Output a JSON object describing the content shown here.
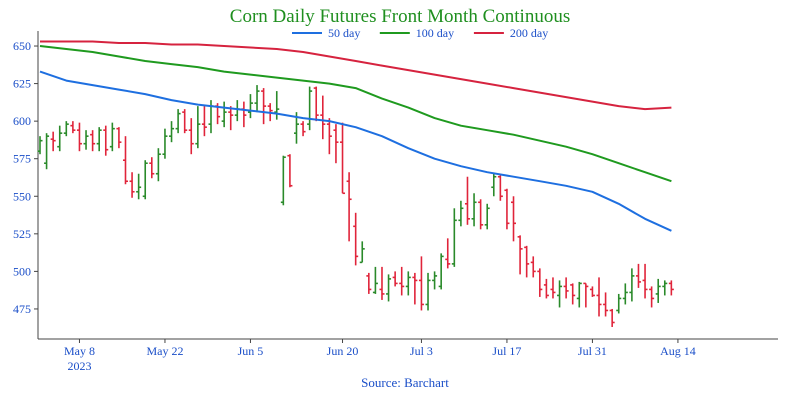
{
  "colors": {
    "title": "#1f8f1f",
    "axis_text": "#1a4ec8",
    "up": "#2a8a2a",
    "down": "#e0243a",
    "ma50": "#1e6fe0",
    "ma100": "#1f9a1f",
    "ma200": "#d6233f"
  },
  "chart_data": {
    "type": "ohlc",
    "title": "Corn Daily Futures Front Month Continuous",
    "source": "Source: Barchart",
    "ylim": [
      455,
      660
    ],
    "yticks": [
      475,
      500,
      525,
      550,
      575,
      600,
      625,
      650
    ],
    "xlim": [
      0,
      111
    ],
    "xticks": [
      {
        "x": 6,
        "label": "May 8",
        "sublabel": "2023"
      },
      {
        "x": 19,
        "label": "May 22",
        "sublabel": ""
      },
      {
        "x": 32,
        "label": "Jun 5",
        "sublabel": ""
      },
      {
        "x": 46,
        "label": "Jun 20",
        "sublabel": ""
      },
      {
        "x": 58,
        "label": "Jul 3",
        "sublabel": ""
      },
      {
        "x": 71,
        "label": "Jul 17",
        "sublabel": ""
      },
      {
        "x": 84,
        "label": "Jul 31",
        "sublabel": ""
      },
      {
        "x": 97,
        "label": "Aug 14",
        "sublabel": ""
      }
    ],
    "legend": {
      "placement": "top-center",
      "entries": [
        {
          "name": "50 day",
          "series": "ma50"
        },
        {
          "name": "100 day",
          "series": "ma100"
        },
        {
          "name": "200 day",
          "series": "ma200"
        }
      ]
    },
    "bars": [
      [
        0,
        580,
        590,
        578,
        587
      ],
      [
        1,
        572,
        592,
        568,
        590
      ],
      [
        2,
        588,
        593,
        580,
        587
      ],
      [
        3,
        583,
        597,
        580,
        592
      ],
      [
        4,
        592,
        600,
        590,
        598
      ],
      [
        5,
        597,
        600,
        592,
        594
      ],
      [
        6,
        594,
        599,
        580,
        585
      ],
      [
        7,
        585,
        594,
        581,
        590
      ],
      [
        8,
        591,
        594,
        580,
        585
      ],
      [
        9,
        585,
        596,
        580,
        594
      ],
      [
        10,
        594,
        597,
        577,
        581
      ],
      [
        11,
        583,
        599,
        580,
        595
      ],
      [
        12,
        595,
        596,
        582,
        586
      ],
      [
        13,
        574,
        590,
        558,
        560
      ],
      [
        14,
        560,
        566,
        549,
        553
      ],
      [
        15,
        553,
        565,
        548,
        556
      ],
      [
        16,
        550,
        574,
        548,
        572
      ],
      [
        17,
        572,
        576,
        562,
        565
      ],
      [
        18,
        565,
        582,
        560,
        578
      ],
      [
        19,
        578,
        595,
        575,
        590
      ],
      [
        20,
        590,
        600,
        586,
        595
      ],
      [
        21,
        595,
        608,
        592,
        605
      ],
      [
        22,
        606,
        608,
        592,
        594
      ],
      [
        23,
        594,
        602,
        578,
        585
      ],
      [
        24,
        585,
        610,
        582,
        598
      ],
      [
        25,
        598,
        610,
        590,
        596
      ],
      [
        26,
        598,
        614,
        592,
        610
      ],
      [
        27,
        610,
        612,
        598,
        603
      ],
      [
        28,
        600,
        613,
        596,
        606
      ],
      [
        29,
        606,
        610,
        594,
        604
      ],
      [
        30,
        604,
        614,
        600,
        608
      ],
      [
        31,
        608,
        613,
        596,
        604
      ],
      [
        32,
        606,
        618,
        602,
        612
      ],
      [
        33,
        612,
        624,
        606,
        620
      ],
      [
        34,
        620,
        622,
        598,
        610
      ],
      [
        35,
        610,
        612,
        600,
        607
      ],
      [
        36,
        606,
        620,
        601,
        608
      ],
      [
        37,
        546,
        577,
        544,
        576
      ],
      [
        38,
        577,
        578,
        556,
        557
      ],
      [
        39,
        592,
        606,
        585,
        598
      ],
      [
        40,
        598,
        600,
        590,
        593
      ],
      [
        41,
        598,
        623,
        594,
        620
      ],
      [
        42,
        622,
        623,
        600,
        604
      ],
      [
        43,
        604,
        617,
        588,
        598
      ],
      [
        44,
        598,
        602,
        578,
        590
      ],
      [
        45,
        594,
        598,
        572,
        586
      ],
      [
        46,
        586,
        599,
        552,
        552
      ],
      [
        47,
        560,
        566,
        520,
        548
      ],
      [
        48,
        530,
        539,
        504,
        510
      ],
      [
        49,
        506,
        520,
        506,
        515
      ],
      [
        50,
        497,
        499,
        485,
        488
      ],
      [
        51,
        486,
        503,
        485,
        492
      ],
      [
        52,
        488,
        503,
        481,
        485
      ],
      [
        53,
        485,
        498,
        480,
        495
      ],
      [
        54,
        496,
        500,
        490,
        492
      ],
      [
        55,
        492,
        503,
        484,
        490
      ],
      [
        56,
        490,
        500,
        484,
        496
      ],
      [
        57,
        496,
        499,
        478,
        494
      ],
      [
        58,
        494,
        510,
        474,
        478
      ],
      [
        59,
        478,
        499,
        474,
        494
      ],
      [
        60,
        494,
        500,
        488,
        497
      ],
      [
        61,
        490,
        512,
        488,
        510
      ],
      [
        62,
        508,
        522,
        502,
        505
      ],
      [
        63,
        505,
        542,
        503,
        534
      ],
      [
        64,
        534,
        547,
        530,
        542
      ],
      [
        65,
        545,
        563,
        531,
        535
      ],
      [
        66,
        535,
        552,
        530,
        546
      ],
      [
        67,
        546,
        548,
        528,
        531
      ],
      [
        68,
        531,
        545,
        528,
        542
      ],
      [
        69,
        556,
        565,
        550,
        563
      ],
      [
        70,
        563,
        564,
        547,
        550
      ],
      [
        71,
        554,
        555,
        528,
        532
      ],
      [
        72,
        546,
        550,
        520,
        532
      ],
      [
        73,
        523,
        524,
        498,
        515
      ],
      [
        74,
        516,
        517,
        496,
        505
      ],
      [
        75,
        506,
        510,
        496,
        500
      ],
      [
        76,
        500,
        502,
        483,
        488
      ],
      [
        77,
        491,
        495,
        482,
        484
      ],
      [
        78,
        488,
        496,
        482,
        486
      ],
      [
        79,
        484,
        494,
        476,
        490
      ],
      [
        80,
        490,
        496,
        482,
        487
      ],
      [
        81,
        491,
        492,
        478,
        484
      ],
      [
        82,
        482,
        493,
        476,
        492
      ],
      [
        83,
        492,
        492,
        476,
        490
      ],
      [
        84,
        488,
        490,
        483,
        484
      ],
      [
        85,
        484,
        496,
        470,
        478
      ],
      [
        86,
        478,
        486,
        470,
        474
      ],
      [
        87,
        474,
        475,
        463,
        466
      ],
      [
        88,
        474,
        485,
        472,
        482
      ],
      [
        89,
        482,
        492,
        478,
        486
      ],
      [
        90,
        486,
        502,
        480,
        497
      ],
      [
        91,
        497,
        505,
        489,
        493
      ],
      [
        92,
        494,
        505,
        482,
        488
      ],
      [
        93,
        488,
        490,
        476,
        482
      ],
      [
        94,
        485,
        495,
        479,
        490
      ],
      [
        95,
        490,
        494,
        484,
        492
      ],
      [
        96,
        492,
        494,
        484,
        488
      ]
    ],
    "series": [
      {
        "key": "ma50",
        "name": "50 day",
        "x": [
          0,
          4,
          8,
          12,
          16,
          20,
          24,
          28,
          32,
          36,
          40,
          44,
          48,
          52,
          56,
          60,
          64,
          68,
          72,
          76,
          80,
          84,
          88,
          92,
          96
        ],
        "y": [
          633,
          627,
          624,
          621,
          618,
          614,
          611,
          609,
          607,
          605,
          602,
          600,
          596,
          590,
          582,
          575,
          570,
          566,
          563,
          560,
          557,
          553,
          545,
          535,
          527
        ]
      },
      {
        "key": "ma100",
        "name": "100 day",
        "x": [
          0,
          4,
          8,
          12,
          16,
          20,
          24,
          28,
          32,
          36,
          40,
          44,
          48,
          52,
          56,
          60,
          64,
          68,
          72,
          76,
          80,
          84,
          88,
          92,
          96
        ],
        "y": [
          650,
          648,
          646,
          643,
          640,
          638,
          636,
          633,
          631,
          629,
          627,
          625,
          622,
          615,
          609,
          602,
          597,
          594,
          591,
          587,
          583,
          578,
          572,
          566,
          560
        ]
      },
      {
        "key": "ma200",
        "name": "200 day",
        "x": [
          0,
          4,
          8,
          12,
          16,
          20,
          24,
          28,
          32,
          36,
          40,
          44,
          48,
          52,
          56,
          60,
          64,
          68,
          72,
          76,
          80,
          84,
          88,
          92,
          96
        ],
        "y": [
          653,
          653,
          653,
          652,
          652,
          651,
          651,
          650,
          649,
          648,
          646,
          643,
          640,
          637,
          634,
          631,
          628,
          625,
          622,
          619,
          616,
          613,
          610,
          608,
          609
        ]
      }
    ]
  }
}
